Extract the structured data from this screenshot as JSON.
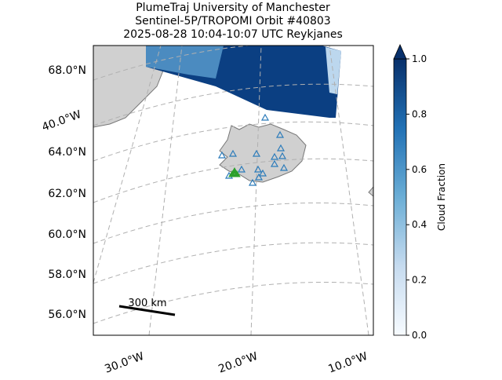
{
  "title": {
    "line1": "PlumeTraj    University of Manchester",
    "line2": "Sentinel-5P/TROPOMI Orbit #40803",
    "line3": "2025-08-28   10:04-10:07 UTC   Reykjanes"
  },
  "map": {
    "lat_labels": [
      "68.0°N",
      "64.0°N",
      "62.0°N",
      "60.0°N",
      "58.0°N",
      "56.0°N"
    ],
    "lon_labels": [
      "40.0°W",
      "30.0°W",
      "20.0°W",
      "10.0°W"
    ],
    "scale_bar": "300 km"
  },
  "colorbar": {
    "label": "Cloud Fraction",
    "lim": [
      0,
      1
    ],
    "ticks": [
      {
        "value": 0,
        "label": "0.0"
      },
      {
        "value": 0.2,
        "label": "0.2"
      },
      {
        "value": 0.4,
        "label": "0.4"
      },
      {
        "value": 0.6,
        "label": "0.6"
      },
      {
        "value": 0.8,
        "label": "0.8"
      },
      {
        "value": 1,
        "label": "1.0"
      }
    ]
  }
}
